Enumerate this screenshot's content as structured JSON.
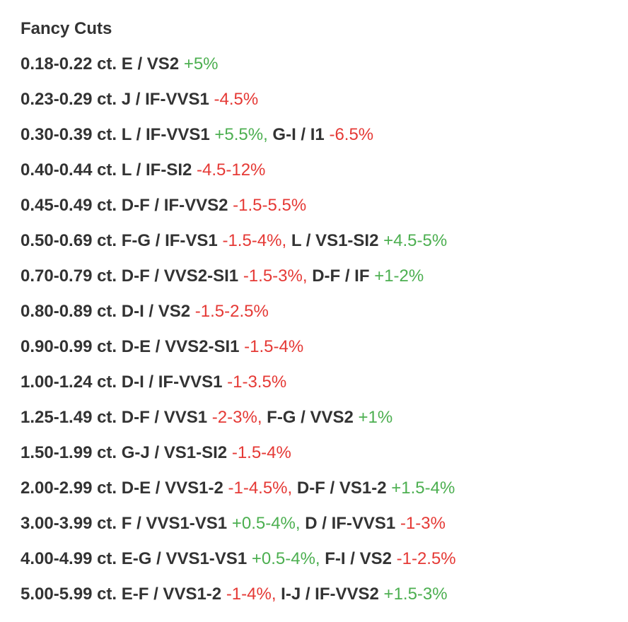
{
  "section_title": "Fancy Cuts",
  "colors": {
    "text": "#333333",
    "positive": "#4caf50",
    "negative": "#e53935"
  },
  "rows": [
    {
      "range": "0.18-0.22 ct.",
      "entries": [
        {
          "grade": "E / VS2",
          "change": "+5%",
          "direction": "positive"
        }
      ]
    },
    {
      "range": "0.23-0.29 ct.",
      "entries": [
        {
          "grade": "J / IF-VVS1",
          "change": "-4.5%",
          "direction": "negative"
        }
      ]
    },
    {
      "range": "0.30-0.39 ct.",
      "entries": [
        {
          "grade": "L / IF-VVS1",
          "change": "+5.5%,",
          "direction": "positive"
        },
        {
          "grade": "G-I / I1",
          "change": "-6.5%",
          "direction": "negative"
        }
      ]
    },
    {
      "range": "0.40-0.44 ct.",
      "entries": [
        {
          "grade": "L / IF-SI2",
          "change": "-4.5-12%",
          "direction": "negative"
        }
      ]
    },
    {
      "range": "0.45-0.49 ct.",
      "entries": [
        {
          "grade": "D-F / IF-VVS2",
          "change": "-1.5-5.5%",
          "direction": "negative"
        }
      ]
    },
    {
      "range": "0.50-0.69 ct.",
      "entries": [
        {
          "grade": "F-G / IF-VS1",
          "change": "-1.5-4%,",
          "direction": "negative"
        },
        {
          "grade": "L / VS1-SI2",
          "change": "+4.5-5%",
          "direction": "positive"
        }
      ]
    },
    {
      "range": "0.70-0.79 ct.",
      "entries": [
        {
          "grade": "D-F / VVS2-SI1",
          "change": "-1.5-3%,",
          "direction": "negative"
        },
        {
          "grade": "D-F / IF",
          "change": "+1-2%",
          "direction": "positive"
        }
      ]
    },
    {
      "range": "0.80-0.89 ct.",
      "entries": [
        {
          "grade": "D-I / VS2",
          "change": "-1.5-2.5%",
          "direction": "negative"
        }
      ]
    },
    {
      "range": "0.90-0.99 ct.",
      "entries": [
        {
          "grade": "D-E / VVS2-SI1",
          "change": "-1.5-4%",
          "direction": "negative"
        }
      ]
    },
    {
      "range": "1.00-1.24 ct.",
      "entries": [
        {
          "grade": "D-I / IF-VVS1",
          "change": "-1-3.5%",
          "direction": "negative"
        }
      ]
    },
    {
      "range": "1.25-1.49 ct.",
      "entries": [
        {
          "grade": "D-F / VVS1",
          "change": "-2-3%,",
          "direction": "negative"
        },
        {
          "grade": "F-G / VVS2",
          "change": "+1%",
          "direction": "positive"
        }
      ]
    },
    {
      "range": "1.50-1.99 ct.",
      "entries": [
        {
          "grade": "G-J / VS1-SI2",
          "change": "-1.5-4%",
          "direction": "negative"
        }
      ]
    },
    {
      "range": "2.00-2.99 ct.",
      "entries": [
        {
          "grade": "D-E / VVS1-2",
          "change": "-1-4.5%,",
          "direction": "negative"
        },
        {
          "grade": "D-F / VS1-2",
          "change": "+1.5-4%",
          "direction": "positive"
        }
      ]
    },
    {
      "range": "3.00-3.99 ct.",
      "entries": [
        {
          "grade": "F / VVS1-VS1",
          "change": "+0.5-4%,",
          "direction": "positive"
        },
        {
          "grade": "D / IF-VVS1",
          "change": "-1-3%",
          "direction": "negative"
        }
      ]
    },
    {
      "range": "4.00-4.99 ct.",
      "entries": [
        {
          "grade": "E-G / VVS1-VS1",
          "change": "+0.5-4%,",
          "direction": "positive"
        },
        {
          "grade": "F-I / VS2",
          "change": "-1-2.5%",
          "direction": "negative"
        }
      ]
    },
    {
      "range": "5.00-5.99 ct.",
      "entries": [
        {
          "grade": "E-F / VVS1-2",
          "change": "-1-4%,",
          "direction": "negative"
        },
        {
          "grade": "I-J / IF-VVS2",
          "change": "+1.5-3%",
          "direction": "positive"
        }
      ]
    }
  ]
}
